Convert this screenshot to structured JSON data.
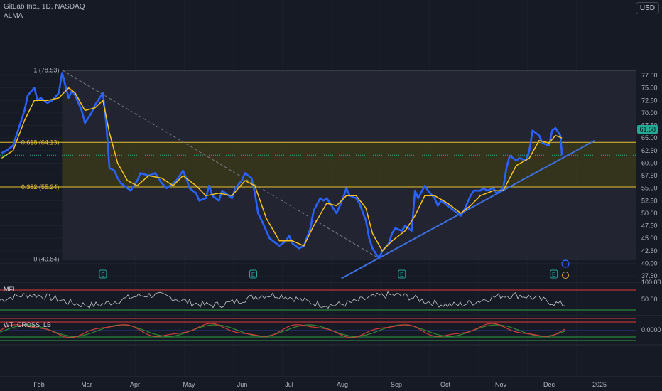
{
  "header": {
    "symbol_line": "GitLab Inc., 1D, NASDAQ",
    "indicator": "ALMA",
    "currency": "USD"
  },
  "colors": {
    "background": "#161a25",
    "price_line": "#2962ff",
    "alma_line": "#f7c21a",
    "trend_line": "#3d6fe0",
    "fib_band": "#3a3a1c",
    "fib_line": "#e6c230",
    "last_price": "#22ab94",
    "mfi_line": "#c8c8c8",
    "upper_band": "#e23b3b",
    "lower_band": "#2e9e3e",
    "wt1": "#d43c3c",
    "wt2": "#2f8a2f"
  },
  "price_tag": "61.58",
  "panes": {
    "mfi": {
      "label": "MFI",
      "levels": [
        "100.00",
        "50.00"
      ]
    },
    "wt": {
      "label": "WT_CROSS_LB",
      "levels": [
        "0.0000"
      ]
    }
  },
  "fib_labels": [
    "1 (78.53)",
    "0.618 (64.13)",
    "0.382 (55.24)",
    "0 (40.84)"
  ],
  "chart_data": {
    "type": "line",
    "title": "GitLab Inc., 1D, NASDAQ",
    "xlabel": "",
    "ylabel": "",
    "ylim": [
      37.5,
      78.5
    ],
    "x_ticks": [
      "Feb",
      "Mar",
      "Apr",
      "May",
      "Jun",
      "Jul",
      "Aug",
      "Sep",
      "Oct",
      "Nov",
      "Dec",
      "2025"
    ],
    "y_ticks": [
      "77.50",
      "75.00",
      "72.50",
      "70.00",
      "67.50",
      "65.00",
      "62.50",
      "60.00",
      "57.50",
      "55.00",
      "52.50",
      "50.00",
      "47.50",
      "45.00",
      "42.50",
      "40.00",
      "37.50"
    ],
    "series": [
      {
        "name": "GitLab Inc.",
        "points": [
          [
            "2024-01-02",
            62.0
          ],
          [
            "2024-01-05",
            62.5
          ],
          [
            "2024-01-09",
            63.5
          ],
          [
            "2024-01-12",
            66.5
          ],
          [
            "2024-01-16",
            70.5
          ],
          [
            "2024-01-18",
            73.5
          ],
          [
            "2024-01-22",
            75.0
          ],
          [
            "2024-01-24",
            72.5
          ],
          [
            "2024-01-26",
            73.0
          ],
          [
            "2024-01-30",
            72.0
          ],
          [
            "2024-02-02",
            72.5
          ],
          [
            "2024-02-06",
            74.0
          ],
          [
            "2024-02-08",
            78.0
          ],
          [
            "2024-02-12",
            73.0
          ],
          [
            "2024-02-14",
            74.5
          ],
          [
            "2024-02-16",
            73.5
          ],
          [
            "2024-02-20",
            70.5
          ],
          [
            "2024-02-22",
            68.0
          ],
          [
            "2024-02-26",
            70.0
          ],
          [
            "2024-02-28",
            71.5
          ],
          [
            "2024-03-01",
            72.5
          ],
          [
            "2024-03-04",
            74.0
          ],
          [
            "2024-03-06",
            68.0
          ],
          [
            "2024-03-08",
            59.0
          ],
          [
            "2024-03-11",
            58.5
          ],
          [
            "2024-03-13",
            57.0
          ],
          [
            "2024-03-15",
            56.0
          ],
          [
            "2024-03-19",
            55.0
          ],
          [
            "2024-03-21",
            54.5
          ],
          [
            "2024-03-25",
            56.5
          ],
          [
            "2024-03-27",
            58.0
          ],
          [
            "2024-04-01",
            57.5
          ],
          [
            "2024-04-05",
            58.0
          ],
          [
            "2024-04-09",
            56.0
          ],
          [
            "2024-04-12",
            55.0
          ],
          [
            "2024-04-16",
            56.0
          ],
          [
            "2024-04-18",
            56.5
          ],
          [
            "2024-04-22",
            58.5
          ],
          [
            "2024-04-24",
            57.0
          ],
          [
            "2024-04-26",
            55.0
          ],
          [
            "2024-04-30",
            54.0
          ],
          [
            "2024-05-02",
            52.5
          ],
          [
            "2024-05-06",
            53.0
          ],
          [
            "2024-05-08",
            55.5
          ],
          [
            "2024-05-10",
            53.5
          ],
          [
            "2024-05-14",
            52.5
          ],
          [
            "2024-05-16",
            54.5
          ],
          [
            "2024-05-20",
            53.5
          ],
          [
            "2024-05-22",
            53.0
          ],
          [
            "2024-05-24",
            55.0
          ],
          [
            "2024-05-28",
            56.5
          ],
          [
            "2024-05-30",
            58.0
          ],
          [
            "2024-06-03",
            57.0
          ],
          [
            "2024-06-05",
            54.0
          ],
          [
            "2024-06-07",
            50.0
          ],
          [
            "2024-06-10",
            48.0
          ],
          [
            "2024-06-12",
            46.5
          ],
          [
            "2024-06-14",
            45.0
          ],
          [
            "2024-06-18",
            44.0
          ],
          [
            "2024-06-20",
            43.5
          ],
          [
            "2024-06-24",
            44.5
          ],
          [
            "2024-06-26",
            45.5
          ],
          [
            "2024-06-28",
            44.0
          ],
          [
            "2024-07-02",
            43.0
          ],
          [
            "2024-07-05",
            43.5
          ],
          [
            "2024-07-09",
            47.0
          ],
          [
            "2024-07-11",
            50.5
          ],
          [
            "2024-07-15",
            53.0
          ],
          [
            "2024-07-17",
            52.5
          ],
          [
            "2024-07-19",
            53.0
          ],
          [
            "2024-07-23",
            51.0
          ],
          [
            "2024-07-25",
            50.0
          ],
          [
            "2024-07-29",
            53.0
          ],
          [
            "2024-07-31",
            55.0
          ],
          [
            "2024-08-02",
            53.5
          ],
          [
            "2024-08-06",
            53.0
          ],
          [
            "2024-08-08",
            52.0
          ],
          [
            "2024-08-12",
            48.5
          ],
          [
            "2024-08-14",
            45.0
          ],
          [
            "2024-08-16",
            43.0
          ],
          [
            "2024-08-20",
            41.0
          ],
          [
            "2024-08-22",
            42.5
          ],
          [
            "2024-08-26",
            44.0
          ],
          [
            "2024-08-28",
            46.0
          ],
          [
            "2024-08-30",
            47.0
          ],
          [
            "2024-09-03",
            46.5
          ],
          [
            "2024-09-05",
            47.5
          ],
          [
            "2024-09-09",
            46.5
          ],
          [
            "2024-09-11",
            54.5
          ],
          [
            "2024-09-13",
            53.0
          ],
          [
            "2024-09-17",
            55.5
          ],
          [
            "2024-09-19",
            54.5
          ],
          [
            "2024-09-23",
            53.0
          ],
          [
            "2024-09-25",
            51.5
          ],
          [
            "2024-09-27",
            52.5
          ],
          [
            "2024-10-01",
            51.5
          ],
          [
            "2024-10-03",
            51.0
          ],
          [
            "2024-10-07",
            50.0
          ],
          [
            "2024-10-09",
            49.5
          ],
          [
            "2024-10-11",
            50.5
          ],
          [
            "2024-10-15",
            53.5
          ],
          [
            "2024-10-17",
            54.5
          ],
          [
            "2024-10-21",
            54.5
          ],
          [
            "2024-10-23",
            55.0
          ],
          [
            "2024-10-25",
            54.5
          ],
          [
            "2024-10-29",
            55.0
          ],
          [
            "2024-10-31",
            54.0
          ],
          [
            "2024-11-04",
            55.0
          ],
          [
            "2024-11-06",
            59.0
          ],
          [
            "2024-11-08",
            61.5
          ],
          [
            "2024-11-12",
            60.5
          ],
          [
            "2024-11-14",
            61.0
          ],
          [
            "2024-11-18",
            60.5
          ],
          [
            "2024-11-20",
            62.5
          ],
          [
            "2024-11-22",
            66.5
          ],
          [
            "2024-11-26",
            65.5
          ],
          [
            "2024-11-28",
            64.0
          ],
          [
            "2024-12-02",
            63.5
          ],
          [
            "2024-12-04",
            66.5
          ],
          [
            "2024-12-06",
            67.0
          ],
          [
            "2024-12-09",
            65.5
          ],
          [
            "2024-12-10",
            61.58
          ]
        ]
      },
      {
        "name": "ALMA",
        "points": [
          [
            "2024-01-02",
            61.0
          ],
          [
            "2024-01-09",
            62.5
          ],
          [
            "2024-01-16",
            68.5
          ],
          [
            "2024-01-22",
            72.5
          ],
          [
            "2024-01-30",
            72.5
          ],
          [
            "2024-02-06",
            73.0
          ],
          [
            "2024-02-12",
            75.0
          ],
          [
            "2024-02-16",
            74.0
          ],
          [
            "2024-02-22",
            70.5
          ],
          [
            "2024-02-28",
            71.0
          ],
          [
            "2024-03-04",
            72.5
          ],
          [
            "2024-03-08",
            66.0
          ],
          [
            "2024-03-13",
            60.0
          ],
          [
            "2024-03-19",
            56.5
          ],
          [
            "2024-03-25",
            55.5
          ],
          [
            "2024-04-01",
            57.5
          ],
          [
            "2024-04-09",
            57.0
          ],
          [
            "2024-04-16",
            55.5
          ],
          [
            "2024-04-22",
            57.5
          ],
          [
            "2024-04-30",
            55.5
          ],
          [
            "2024-05-06",
            53.5
          ],
          [
            "2024-05-14",
            54.0
          ],
          [
            "2024-05-22",
            53.5
          ],
          [
            "2024-05-30",
            56.5
          ],
          [
            "2024-06-05",
            55.5
          ],
          [
            "2024-06-12",
            49.0
          ],
          [
            "2024-06-20",
            44.5
          ],
          [
            "2024-06-28",
            44.5
          ],
          [
            "2024-07-05",
            43.5
          ],
          [
            "2024-07-11",
            47.5
          ],
          [
            "2024-07-19",
            52.0
          ],
          [
            "2024-07-25",
            51.5
          ],
          [
            "2024-07-31",
            53.5
          ],
          [
            "2024-08-06",
            53.5
          ],
          [
            "2024-08-12",
            51.0
          ],
          [
            "2024-08-16",
            46.0
          ],
          [
            "2024-08-22",
            42.5
          ],
          [
            "2024-08-28",
            44.5
          ],
          [
            "2024-09-05",
            46.5
          ],
          [
            "2024-09-11",
            49.5
          ],
          [
            "2024-09-17",
            53.5
          ],
          [
            "2024-09-23",
            53.5
          ],
          [
            "2024-10-01",
            52.0
          ],
          [
            "2024-10-09",
            50.0
          ],
          [
            "2024-10-15",
            51.5
          ],
          [
            "2024-10-21",
            53.5
          ],
          [
            "2024-10-29",
            54.5
          ],
          [
            "2024-11-04",
            54.5
          ],
          [
            "2024-11-12",
            59.5
          ],
          [
            "2024-11-20",
            61.0
          ],
          [
            "2024-11-26",
            64.5
          ],
          [
            "2024-12-02",
            64.0
          ],
          [
            "2024-12-06",
            65.5
          ],
          [
            "2024-12-10",
            65.0
          ]
        ]
      }
    ]
  }
}
